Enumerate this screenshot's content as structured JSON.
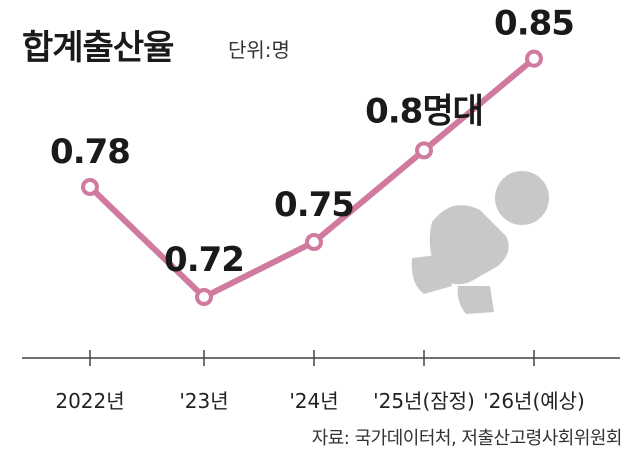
{
  "header": {
    "title": "합계출산율",
    "unit": "단위:명"
  },
  "source": "자료: 국가데이터처, 저출산고령사회위원회",
  "colors": {
    "line": "#cf7a9e",
    "marker_fill": "#ffffff",
    "axis": "#444444",
    "illustration": "#c8c8c8"
  },
  "illustration": {
    "icon": "crawling-baby-icon"
  },
  "chart_data": {
    "type": "line",
    "title": "합계출산율",
    "categories": [
      "2022년",
      "'23년",
      "'24년",
      "'25년(잠정)",
      "'26년(예상)"
    ],
    "values": [
      0.78,
      0.72,
      0.75,
      0.8,
      0.85
    ],
    "data_labels": [
      "0.78",
      "0.72",
      "0.75",
      "0.8명대",
      "0.85"
    ],
    "ylim": [
      0.69,
      0.87
    ],
    "grid": false,
    "legend": "none"
  }
}
